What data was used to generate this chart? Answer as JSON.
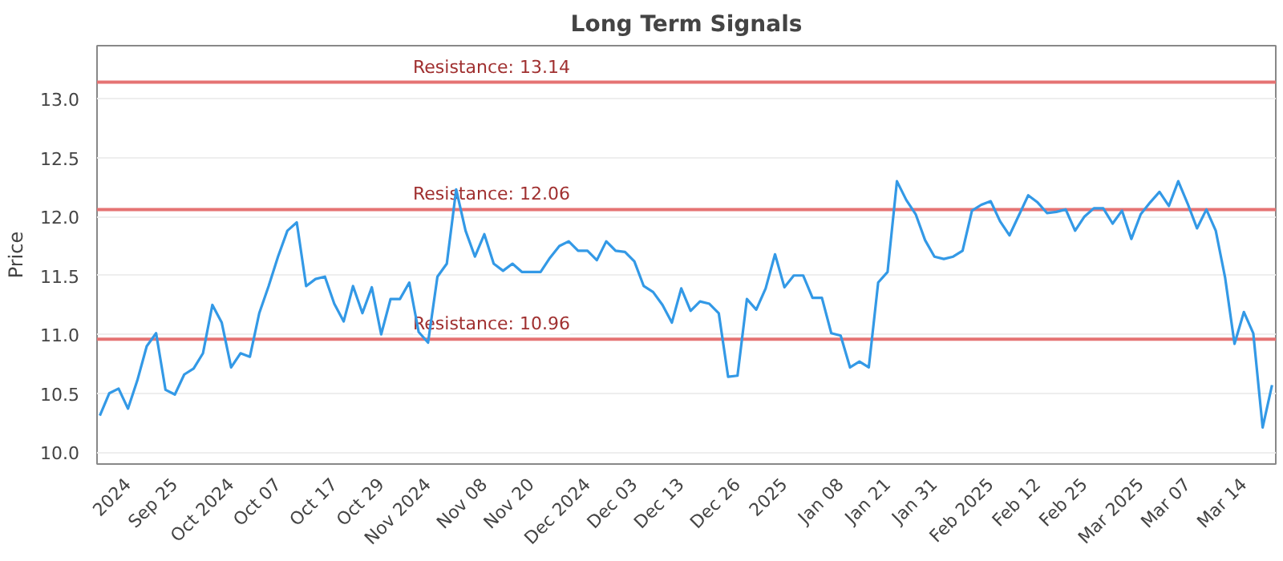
{
  "chart_data": {
    "type": "line",
    "title": "Long Term Signals",
    "ylabel": "Price",
    "categories": [
      null,
      null,
      null,
      "2024",
      null,
      null,
      null,
      null,
      "Sep 25",
      null,
      null,
      null,
      null,
      null,
      "Oct 2024",
      null,
      null,
      null,
      null,
      "Oct 07",
      null,
      null,
      null,
      null,
      null,
      "Oct 17",
      null,
      null,
      null,
      null,
      "Oct 29",
      null,
      null,
      null,
      null,
      "Nov 2024",
      null,
      null,
      null,
      null,
      null,
      "Nov 08",
      null,
      null,
      null,
      null,
      "Nov 20",
      null,
      null,
      null,
      null,
      null,
      "Dec 2024",
      null,
      null,
      null,
      null,
      "Dec 03",
      null,
      null,
      null,
      null,
      "Dec 13",
      null,
      null,
      null,
      null,
      null,
      "Dec 26",
      null,
      null,
      null,
      null,
      "2025",
      null,
      null,
      null,
      null,
      null,
      "Jan 08",
      null,
      null,
      null,
      null,
      "Jan 21",
      null,
      null,
      null,
      null,
      "Jan 31",
      null,
      null,
      null,
      null,
      null,
      "Feb 2025",
      null,
      null,
      null,
      null,
      "Feb 12",
      null,
      null,
      null,
      null,
      "Feb 25",
      null,
      null,
      null,
      null,
      null,
      "Mar 2025",
      null,
      null,
      null,
      null,
      "Mar 07",
      null,
      null,
      null,
      null,
      null,
      "Mar 14",
      null,
      null,
      null
    ],
    "series": [
      {
        "color": "#3399e6",
        "values": [
          10.31,
          10.5,
          10.54,
          10.37,
          10.61,
          10.9,
          11.01,
          10.53,
          10.49,
          10.66,
          10.71,
          10.84,
          11.25,
          11.1,
          10.72,
          10.84,
          10.81,
          11.18,
          11.41,
          11.66,
          11.88,
          11.95,
          11.41,
          11.47,
          11.49,
          11.26,
          11.11,
          11.41,
          11.18,
          11.4,
          11.0,
          11.3,
          11.3,
          11.44,
          11.02,
          10.93,
          11.49,
          11.6,
          12.23,
          11.88,
          11.66,
          11.85,
          11.6,
          11.54,
          11.6,
          11.53,
          11.53,
          11.53,
          11.65,
          11.75,
          11.79,
          11.71,
          11.71,
          11.63,
          11.79,
          11.71,
          11.7,
          11.62,
          11.41,
          11.36,
          11.25,
          11.1,
          11.39,
          11.2,
          11.28,
          11.26,
          11.18,
          10.64,
          10.65,
          11.3,
          11.21,
          11.39,
          11.68,
          11.4,
          11.5,
          11.5,
          11.31,
          11.31,
          11.01,
          10.99,
          10.72,
          10.77,
          10.72,
          11.44,
          11.53,
          12.3,
          12.14,
          12.02,
          11.8,
          11.66,
          11.64,
          11.66,
          11.71,
          12.05,
          12.1,
          12.13,
          11.96,
          11.84,
          12.01,
          12.18,
          12.12,
          12.03,
          12.04,
          12.06,
          11.88,
          12.0,
          12.07,
          12.07,
          11.94,
          12.05,
          11.81,
          12.02,
          12.12,
          12.21,
          12.09,
          12.3,
          12.11,
          11.9,
          12.06,
          11.88,
          11.48,
          10.92,
          11.19,
          11.01,
          10.21,
          10.57
        ]
      }
    ],
    "ylim": [
      9.9,
      13.45
    ],
    "yticks": [
      {
        "value": 10,
        "label": "10.0"
      },
      10.5,
      {
        "value": 11,
        "label": "11.0"
      },
      11.5,
      {
        "value": 12,
        "label": "12.0"
      },
      12.5,
      {
        "value": 13,
        "label": "13.0"
      }
    ],
    "grid": "y",
    "marker": "none",
    "line_style": "solid",
    "ref_lines": [
      {
        "axis": "y",
        "value": 13.14,
        "label": "Resistance: 13.14",
        "color": "#e57373"
      },
      {
        "axis": "y",
        "value": 12.06,
        "label": "Resistance: 12.06",
        "color": "#e57373"
      },
      {
        "axis": "y",
        "value": 10.96,
        "label": "Resistance: 10.96",
        "color": "#e57373"
      }
    ]
  }
}
